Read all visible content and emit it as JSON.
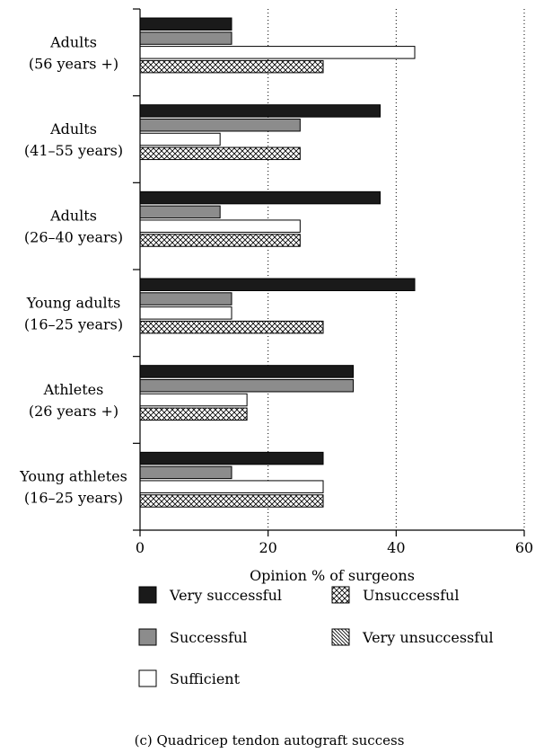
{
  "chart_data": {
    "type": "bar",
    "orientation": "horizontal",
    "categories": [
      [
        "Adults",
        "(56 years +)"
      ],
      [
        "Adults",
        "(41–55 years)"
      ],
      [
        "Adults",
        "(26–40 years)"
      ],
      [
        "Young adults",
        "(16–25 years)"
      ],
      [
        "Athletes",
        "(26 years +)"
      ],
      [
        "Young athletes",
        "(16–25 years)"
      ]
    ],
    "series": [
      {
        "name": "Very successful",
        "values": [
          14.3,
          37.5,
          37.5,
          42.9,
          33.3,
          28.6
        ]
      },
      {
        "name": "Successful",
        "values": [
          14.3,
          25.0,
          12.5,
          14.3,
          33.3,
          14.3
        ]
      },
      {
        "name": "Sufficient",
        "values": [
          42.9,
          12.5,
          25.0,
          14.3,
          16.7,
          28.6
        ]
      },
      {
        "name": "Unsuccessful",
        "values": [
          28.6,
          25.0,
          25.0,
          28.6,
          16.7,
          28.6
        ]
      },
      {
        "name": "Very unsuccessful",
        "values": [
          0,
          0,
          0,
          0,
          0,
          0
        ]
      }
    ],
    "xlabel": "Opinion % of surgeons",
    "xlim": [
      0,
      60
    ],
    "xticks": [
      0,
      20,
      40,
      60
    ],
    "grid": "vertical dotted",
    "legend_position": "bottom",
    "colors": {
      "very_successful": "#1a1a1a",
      "successful": "#8c8c8c",
      "sufficient": "#ffffff"
    },
    "caption": "(c) Quadricep tendon autograft success"
  }
}
